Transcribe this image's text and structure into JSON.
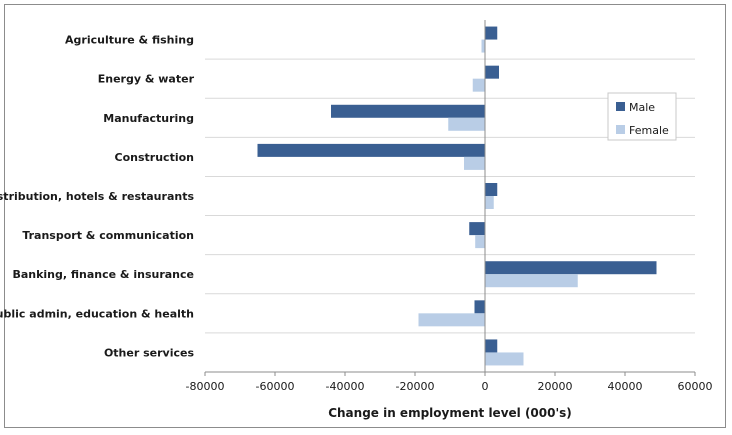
{
  "chart_data": {
    "type": "bar",
    "orientation": "horizontal",
    "xlabel": "Change in employment level (000's)",
    "xlim": [
      -80000,
      60000
    ],
    "xticks": [
      -80000,
      -60000,
      -40000,
      -20000,
      0,
      20000,
      40000,
      60000
    ],
    "categories": [
      "Agriculture & fishing",
      "Energy & water",
      "Manufacturing",
      "Construction",
      "Distribution, hotels & restaurants",
      "Transport & communication",
      "Banking, finance & insurance",
      "Public admin, education & health",
      "Other services"
    ],
    "series": [
      {
        "name": "Male",
        "color": "#3a5f92",
        "values": [
          3500,
          4000,
          -44000,
          -65000,
          3500,
          -4500,
          49000,
          -3000,
          3500
        ]
      },
      {
        "name": "Female",
        "color": "#b9cde6",
        "values": [
          -1000,
          -3500,
          -10500,
          -6000,
          2500,
          -2800,
          26500,
          -19000,
          11000
        ]
      }
    ],
    "grid": "horizontal-separators",
    "legend_position": "right"
  }
}
